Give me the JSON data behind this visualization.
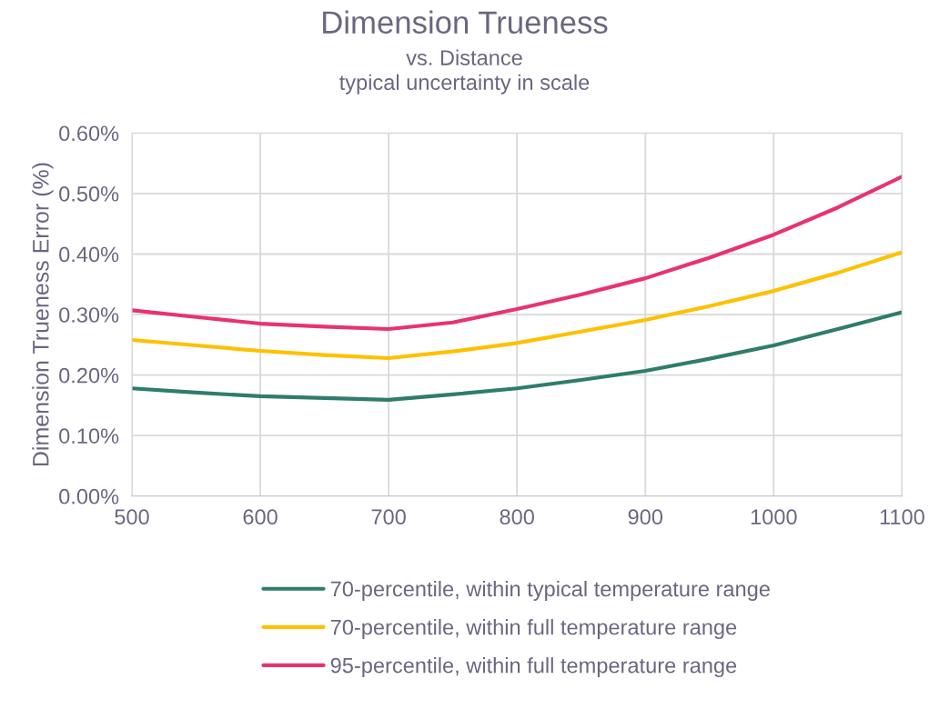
{
  "chart_data": {
    "type": "line",
    "title": "Dimension Trueness",
    "subtitle": "vs. Distance\ntypical uncertainty in scale",
    "ylabel": "Dimension Trueness Error (%)",
    "x": [
      500,
      550,
      600,
      650,
      700,
      750,
      800,
      850,
      900,
      950,
      1000,
      1050,
      1100
    ],
    "series": [
      {
        "name": "70-percentile, within typical temperature range",
        "color": "#2e7d6b",
        "values": [
          0.178,
          0.171,
          0.165,
          0.162,
          0.159,
          0.168,
          0.178,
          0.192,
          0.207,
          0.227,
          0.249,
          0.276,
          0.304
        ]
      },
      {
        "name": "70-percentile, within full temperature range",
        "color": "#ffc000",
        "values": [
          0.258,
          0.249,
          0.24,
          0.233,
          0.228,
          0.239,
          0.253,
          0.272,
          0.291,
          0.314,
          0.339,
          0.369,
          0.403
        ]
      },
      {
        "name": "95-percentile, within full temperature range",
        "color": "#e8336e",
        "values": [
          0.307,
          0.296,
          0.285,
          0.28,
          0.276,
          0.287,
          0.309,
          0.333,
          0.36,
          0.394,
          0.432,
          0.477,
          0.528
        ]
      }
    ],
    "xlim": [
      500,
      1100
    ],
    "xticks": [
      500,
      600,
      700,
      800,
      900,
      1000,
      1100
    ],
    "ylim": [
      0,
      0.6
    ],
    "yticks": [
      {
        "value": 0,
        "label": "0.00%"
      },
      {
        "value": 0.1,
        "label": "0.10%"
      },
      {
        "value": 0.2,
        "label": "0.20%"
      },
      {
        "value": 0.3,
        "label": "0.30%"
      },
      {
        "value": 0.4,
        "label": "0.40%"
      },
      {
        "value": 0.5,
        "label": "0.50%"
      },
      {
        "value": 0.6,
        "label": "0.60%"
      }
    ],
    "grid": true,
    "legend": "bottom",
    "marker": "none",
    "line_style": "solid"
  }
}
